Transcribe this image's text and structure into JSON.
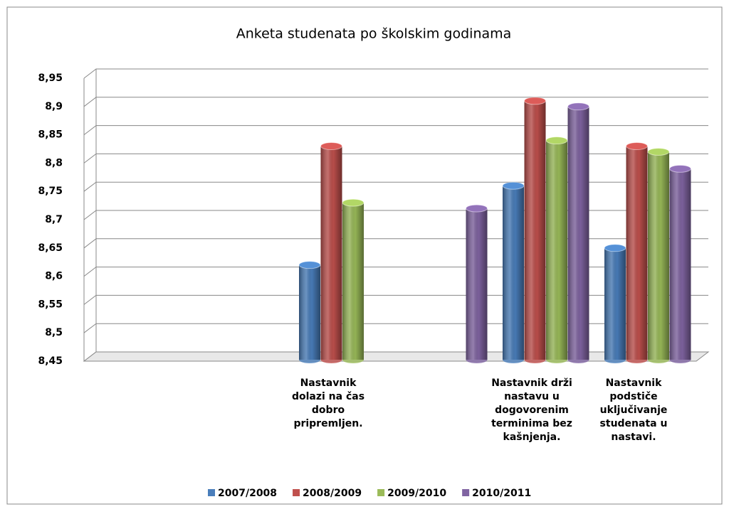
{
  "chart_data": {
    "type": "bar",
    "title": "Anketa studenata po školskim godinama",
    "categories": [
      null,
      null,
      "Nastavnik dolazi na čas dobro pripremljen.",
      null,
      "Nastavnik drži nastavu u dogovorenim terminima bez kašnjenja.",
      "Nastavnik podstiče uključivanje studenata u nastavi."
    ],
    "series": [
      {
        "name": "2007/2008",
        "color": "#4a7ebb",
        "values": [
          null,
          null,
          8.62,
          null,
          8.76,
          8.65
        ]
      },
      {
        "name": "2008/2009",
        "color": "#c0504d",
        "values": [
          null,
          null,
          8.83,
          null,
          8.91,
          8.83
        ]
      },
      {
        "name": "2009/2010",
        "color": "#9bbb59",
        "values": [
          null,
          null,
          8.73,
          null,
          8.84,
          8.82
        ]
      },
      {
        "name": "2010/2011",
        "color": "#8064a2",
        "values": [
          null,
          null,
          null,
          8.72,
          8.9,
          8.79
        ]
      }
    ],
    "ylim": [
      8.45,
      8.95
    ],
    "yticks": [
      {
        "value": 8.45,
        "label": "8,45"
      },
      {
        "value": 8.5,
        "label": "8,5"
      },
      {
        "value": 8.55,
        "label": "8,55"
      },
      {
        "value": 8.6,
        "label": "8,6"
      },
      {
        "value": 8.65,
        "label": "8,65"
      },
      {
        "value": 8.7,
        "label": "8,7"
      },
      {
        "value": 8.75,
        "label": "8,75"
      },
      {
        "value": 8.8,
        "label": "8,8"
      },
      {
        "value": 8.85,
        "label": "8,85"
      },
      {
        "value": 8.9,
        "label": "8,9"
      },
      {
        "value": 8.95,
        "label": "8,95"
      }
    ],
    "grid": true,
    "legend": "bottom"
  }
}
